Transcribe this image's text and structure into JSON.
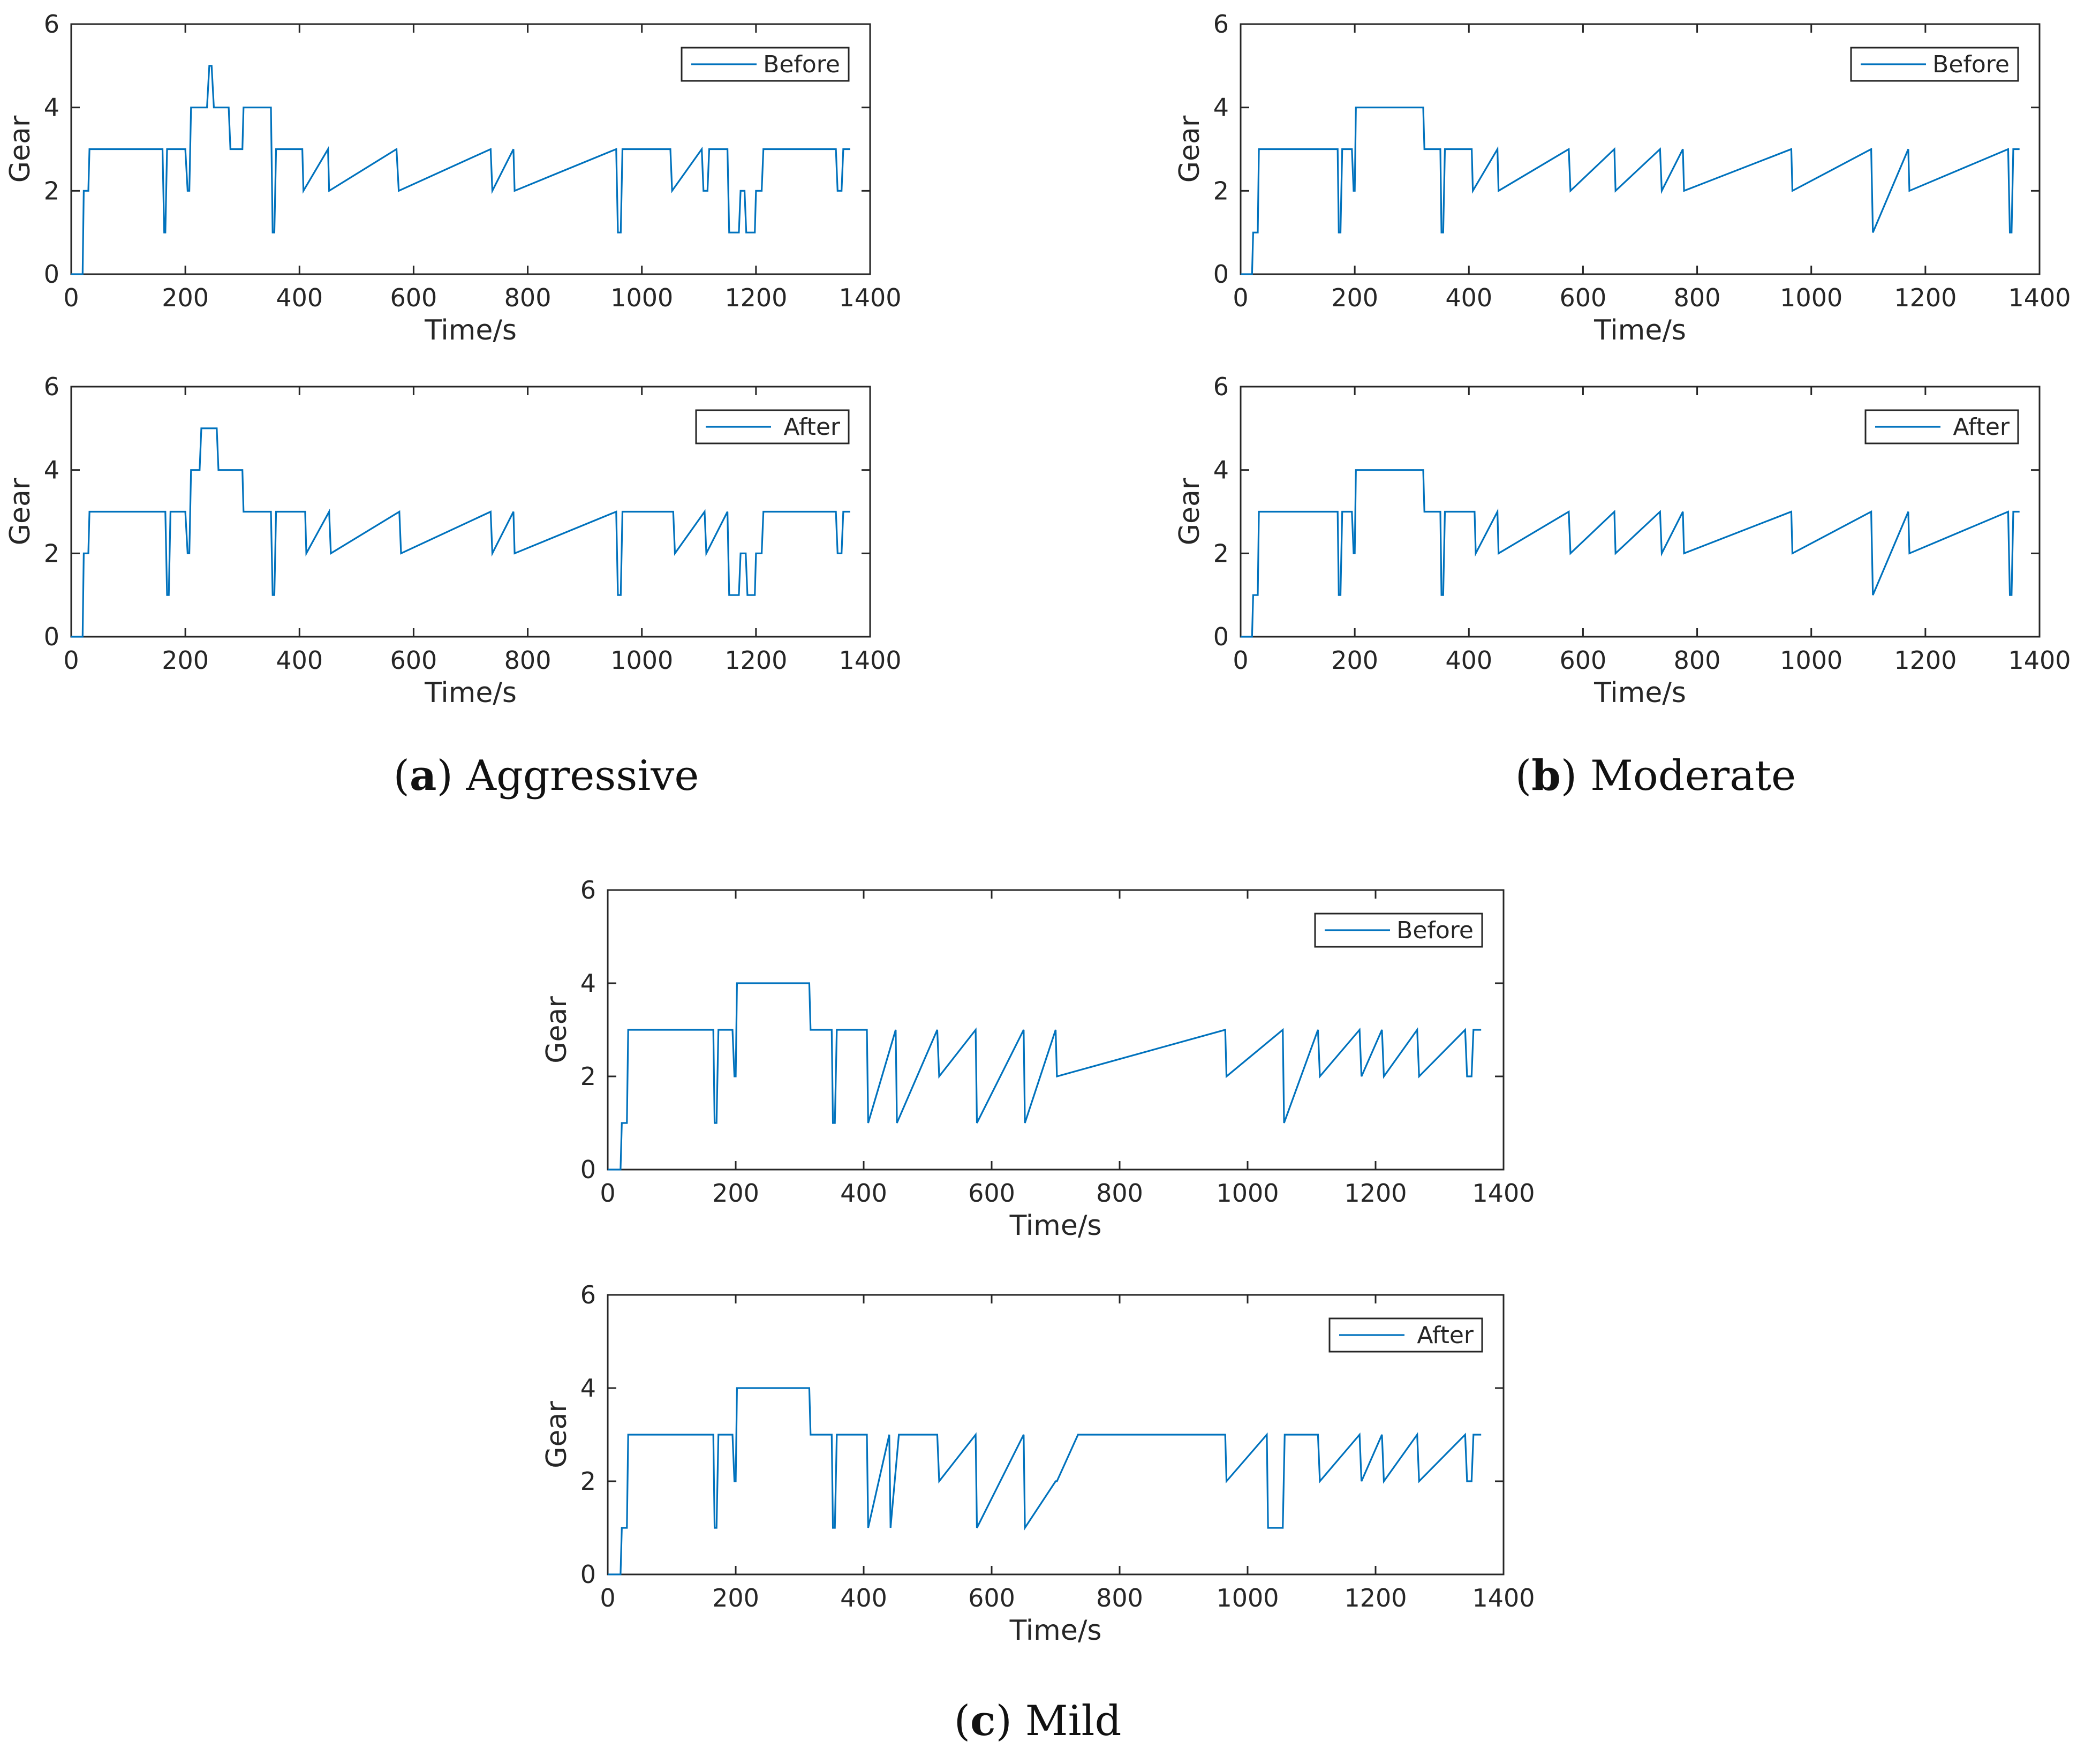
{
  "figure": {
    "line_color": "#0072bd",
    "captions": [
      {
        "letter": "a",
        "name": "Aggressive"
      },
      {
        "letter": "b",
        "name": "Moderate"
      },
      {
        "letter": "c",
        "name": "Mild"
      }
    ]
  },
  "chart_data": [
    {
      "type": "line",
      "group": "a",
      "title": "",
      "xlabel": "Time/s",
      "ylabel": "Gear",
      "xlim": [
        0,
        1400
      ],
      "ylim": [
        0,
        6
      ],
      "xticks": [
        0,
        200,
        400,
        600,
        800,
        1000,
        1200,
        1400
      ],
      "yticks": [
        0,
        2,
        4,
        6
      ],
      "legend": "top-right",
      "series": [
        {
          "name": "Before",
          "x": [
            0,
            20,
            22,
            30,
            32,
            160,
            163,
            165,
            168,
            200,
            204,
            207,
            210,
            220,
            223,
            238,
            242,
            246,
            250,
            258,
            262,
            276,
            279,
            300,
            302,
            350,
            353,
            356,
            359,
            405,
            407,
            450,
            452,
            570,
            574,
            735,
            738,
            775,
            777,
            955,
            958,
            963,
            966,
            1050,
            1053,
            1105,
            1108,
            1115,
            1118,
            1150,
            1153,
            1170,
            1173,
            1180,
            1183,
            1198,
            1200,
            1210,
            1213,
            1340,
            1343,
            1350,
            1353,
            1365
          ],
          "y": [
            0,
            0,
            2,
            2,
            3,
            3,
            1,
            1,
            3,
            3,
            2,
            2,
            4,
            4,
            4,
            4,
            5,
            5,
            4,
            4,
            4,
            4,
            3,
            3,
            4,
            4,
            1,
            1,
            3,
            3,
            2,
            3,
            2,
            3,
            2,
            3,
            2,
            3,
            2,
            3,
            1,
            1,
            3,
            3,
            2,
            3,
            2,
            2,
            3,
            3,
            1,
            1,
            2,
            2,
            1,
            1,
            2,
            2,
            3,
            3,
            2,
            2,
            3,
            3
          ]
        }
      ]
    },
    {
      "type": "line",
      "group": "a",
      "title": "",
      "xlabel": "Time/s",
      "ylabel": "Gear",
      "xlim": [
        0,
        1400
      ],
      "ylim": [
        0,
        6
      ],
      "xticks": [
        0,
        200,
        400,
        600,
        800,
        1000,
        1200,
        1400
      ],
      "yticks": [
        0,
        2,
        4,
        6
      ],
      "legend": "top-right",
      "series": [
        {
          "name": "After",
          "x": [
            0,
            20,
            22,
            30,
            32,
            165,
            168,
            171,
            174,
            200,
            204,
            207,
            210,
            225,
            228,
            255,
            258,
            300,
            302,
            350,
            353,
            356,
            359,
            410,
            412,
            452,
            455,
            575,
            578,
            735,
            738,
            775,
            777,
            955,
            958,
            963,
            966,
            1055,
            1058,
            1110,
            1113,
            1150,
            1153,
            1170,
            1173,
            1182,
            1185,
            1198,
            1200,
            1210,
            1213,
            1340,
            1343,
            1350,
            1353,
            1365
          ],
          "y": [
            0,
            0,
            2,
            2,
            3,
            3,
            1,
            1,
            3,
            3,
            2,
            2,
            4,
            4,
            5,
            5,
            4,
            4,
            3,
            3,
            1,
            1,
            3,
            3,
            2,
            3,
            2,
            3,
            2,
            3,
            2,
            3,
            2,
            3,
            1,
            1,
            3,
            3,
            2,
            3,
            2,
            3,
            1,
            1,
            2,
            2,
            1,
            1,
            2,
            2,
            3,
            3,
            2,
            2,
            3,
            3
          ]
        }
      ]
    },
    {
      "type": "line",
      "group": "b",
      "title": "",
      "xlabel": "Time/s",
      "ylabel": "Gear",
      "xlim": [
        0,
        1400
      ],
      "ylim": [
        0,
        6
      ],
      "xticks": [
        0,
        200,
        400,
        600,
        800,
        1000,
        1200,
        1400
      ],
      "yticks": [
        0,
        2,
        4,
        6
      ],
      "legend": "top-right",
      "series": [
        {
          "name": "Before",
          "x": [
            0,
            20,
            22,
            30,
            32,
            170,
            172,
            175,
            178,
            195,
            198,
            200,
            202,
            320,
            322,
            350,
            352,
            355,
            358,
            405,
            407,
            450,
            452,
            575,
            578,
            655,
            657,
            735,
            738,
            775,
            777,
            965,
            967,
            1105,
            1108,
            1170,
            1172,
            1345,
            1348,
            1351,
            1354,
            1365
          ],
          "y": [
            0,
            0,
            1,
            1,
            3,
            3,
            1,
            1,
            3,
            3,
            2,
            2,
            4,
            4,
            3,
            3,
            1,
            1,
            3,
            3,
            2,
            3,
            2,
            3,
            2,
            3,
            2,
            3,
            2,
            3,
            2,
            3,
            2,
            3,
            1,
            3,
            2,
            3,
            1,
            1,
            3,
            3
          ]
        }
      ]
    },
    {
      "type": "line",
      "group": "b",
      "title": "",
      "xlabel": "Time/s",
      "ylabel": "Gear",
      "xlim": [
        0,
        1400
      ],
      "ylim": [
        0,
        6
      ],
      "xticks": [
        0,
        200,
        400,
        600,
        800,
        1000,
        1200,
        1400
      ],
      "yticks": [
        0,
        2,
        4,
        6
      ],
      "legend": "top-right",
      "series": [
        {
          "name": "After",
          "x": [
            0,
            20,
            22,
            30,
            32,
            170,
            172,
            175,
            178,
            195,
            198,
            200,
            202,
            320,
            322,
            350,
            352,
            355,
            358,
            410,
            412,
            450,
            452,
            575,
            578,
            655,
            657,
            735,
            738,
            775,
            777,
            965,
            967,
            1105,
            1108,
            1170,
            1172,
            1345,
            1348,
            1351,
            1354,
            1365
          ],
          "y": [
            0,
            0,
            1,
            1,
            3,
            3,
            1,
            1,
            3,
            3,
            2,
            2,
            4,
            4,
            3,
            3,
            1,
            1,
            3,
            3,
            2,
            3,
            2,
            3,
            2,
            3,
            2,
            3,
            2,
            3,
            2,
            3,
            2,
            3,
            1,
            3,
            2,
            3,
            1,
            1,
            3,
            3
          ]
        }
      ]
    },
    {
      "type": "line",
      "group": "c",
      "title": "",
      "xlabel": "Time/s",
      "ylabel": "Gear",
      "xlim": [
        0,
        1400
      ],
      "ylim": [
        0,
        6
      ],
      "xticks": [
        0,
        200,
        400,
        600,
        800,
        1000,
        1200,
        1400
      ],
      "yticks": [
        0,
        2,
        4,
        6
      ],
      "legend": "top-right",
      "series": [
        {
          "name": "Before",
          "x": [
            0,
            20,
            22,
            30,
            32,
            165,
            167,
            170,
            173,
            195,
            198,
            200,
            202,
            315,
            317,
            350,
            352,
            355,
            358,
            405,
            407,
            450,
            452,
            515,
            518,
            575,
            577,
            650,
            652,
            700,
            702,
            965,
            967,
            1055,
            1057,
            1110,
            1113,
            1175,
            1178,
            1210,
            1213,
            1265,
            1268,
            1340,
            1343,
            1350,
            1353,
            1365
          ],
          "y": [
            0,
            0,
            1,
            1,
            3,
            3,
            1,
            1,
            3,
            3,
            2,
            2,
            4,
            4,
            3,
            3,
            1,
            1,
            3,
            3,
            1,
            3,
            1,
            3,
            2,
            3,
            1,
            3,
            1,
            3,
            2,
            3,
            2,
            3,
            1,
            3,
            2,
            3,
            2,
            3,
            2,
            3,
            2,
            3,
            2,
            2,
            3,
            3
          ]
        }
      ]
    },
    {
      "type": "line",
      "group": "c",
      "title": "",
      "xlabel": "Time/s",
      "ylabel": "Gear",
      "xlim": [
        0,
        1400
      ],
      "ylim": [
        0,
        6
      ],
      "xticks": [
        0,
        200,
        400,
        600,
        800,
        1000,
        1200,
        1400
      ],
      "yticks": [
        0,
        2,
        4,
        6
      ],
      "legend": "top-right",
      "series": [
        {
          "name": "After",
          "x": [
            0,
            20,
            22,
            30,
            32,
            165,
            167,
            170,
            173,
            195,
            198,
            200,
            202,
            315,
            317,
            350,
            352,
            355,
            358,
            405,
            407,
            440,
            442,
            455,
            458,
            515,
            518,
            575,
            577,
            650,
            652,
            700,
            702,
            735,
            737,
            965,
            967,
            1030,
            1032,
            1055,
            1058,
            1110,
            1113,
            1175,
            1178,
            1210,
            1213,
            1265,
            1268,
            1340,
            1343,
            1350,
            1353,
            1365
          ],
          "y": [
            0,
            0,
            1,
            1,
            3,
            3,
            1,
            1,
            3,
            3,
            2,
            2,
            4,
            4,
            3,
            3,
            1,
            1,
            3,
            3,
            1,
            3,
            1,
            3,
            3,
            3,
            2,
            3,
            1,
            3,
            1,
            2,
            2,
            3,
            3,
            3,
            2,
            3,
            1,
            1,
            3,
            3,
            2,
            3,
            2,
            3,
            2,
            3,
            2,
            3,
            2,
            2,
            3,
            3
          ]
        }
      ]
    }
  ]
}
